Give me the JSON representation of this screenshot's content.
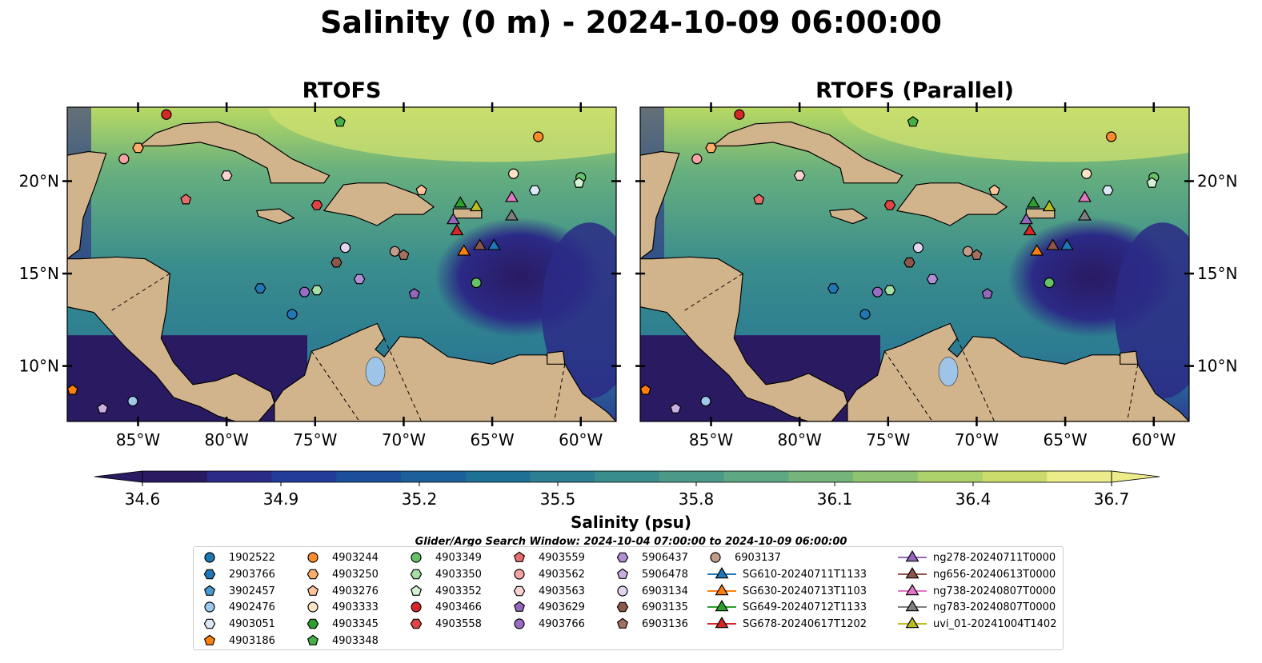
{
  "title": "Salinity (0 m) - 2024-10-09 06:00:00",
  "panels": [
    {
      "title": "RTOFS"
    },
    {
      "title": "RTOFS (Parallel)"
    }
  ],
  "axes": {
    "lon_ticks": [
      "85°W",
      "80°W",
      "75°W",
      "70°W",
      "65°W",
      "60°W"
    ],
    "lat_ticks": [
      "20°N",
      "15°N",
      "10°N"
    ],
    "lon_values": [
      -85,
      -80,
      -75,
      -70,
      -65,
      -60
    ],
    "lat_values": [
      20,
      15,
      10
    ],
    "lon_range": [
      -89,
      -58
    ],
    "lat_range": [
      7,
      24
    ]
  },
  "colorbar": {
    "label": "Salinity (psu)",
    "ticks": [
      "34.6",
      "34.9",
      "35.2",
      "35.5",
      "35.8",
      "36.1",
      "36.4",
      "36.7"
    ],
    "range": [
      34.6,
      36.7
    ],
    "extend": "both",
    "colormap": [
      "#2a1a62",
      "#2b2a86",
      "#233c99",
      "#1c4f9b",
      "#1b6098",
      "#1f7095",
      "#2b7f91",
      "#3a8d8d",
      "#4b9a88",
      "#5ea783",
      "#75b57c",
      "#8fc372",
      "#acd06a",
      "#cbdc6c",
      "#ecec8a"
    ]
  },
  "search_window": "Glider/Argo Search Window: 2024-10-04 07:00:00 to 2024-10-09 06:00:00",
  "colors": {
    "land": "#d2b48c",
    "lakes": "#9ec4e8",
    "rivers": "#a9c4e3",
    "water_high": "#b9d962",
    "water_mid": "#3f8f8b",
    "water_low": "#2b1a66"
  },
  "legend": {
    "columns": [
      [
        {
          "label": "1902522",
          "shape": "circle",
          "color": "#1f77b4"
        },
        {
          "label": "2903766",
          "shape": "hexagon",
          "color": "#1f77b4"
        },
        {
          "label": "3902457",
          "shape": "pentagon",
          "color": "#4a9ad0"
        },
        {
          "label": "4902476",
          "shape": "circle",
          "color": "#9fc8ea"
        },
        {
          "label": "4903051",
          "shape": "hexagon",
          "color": "#dbe9f6"
        },
        {
          "label": "4903186",
          "shape": "pentagon",
          "color": "#ff7f0e"
        }
      ],
      [
        {
          "label": "4903244",
          "shape": "circle",
          "color": "#ff8c2a"
        },
        {
          "label": "4903250",
          "shape": "hexagon",
          "color": "#ffad6b"
        },
        {
          "label": "4903276",
          "shape": "pentagon",
          "color": "#ffc59a"
        },
        {
          "label": "4903333",
          "shape": "circle",
          "color": "#ffe3c6"
        },
        {
          "label": "4903345",
          "shape": "hexagon",
          "color": "#2ca02c"
        },
        {
          "label": "4903348",
          "shape": "pentagon",
          "color": "#45b045"
        }
      ],
      [
        {
          "label": "4903349",
          "shape": "circle",
          "color": "#66c266"
        },
        {
          "label": "4903350",
          "shape": "hexagon",
          "color": "#a6dea6"
        },
        {
          "label": "4903352",
          "shape": "pentagon",
          "color": "#d5f2d5"
        },
        {
          "label": "4903466",
          "shape": "circle",
          "color": "#d62728"
        },
        {
          "label": "4903558",
          "shape": "hexagon",
          "color": "#e04545"
        }
      ],
      [
        {
          "label": "4903559",
          "shape": "pentagon",
          "color": "#ea6d6d"
        },
        {
          "label": "4903562",
          "shape": "circle",
          "color": "#f5a3a3"
        },
        {
          "label": "4903563",
          "shape": "hexagon",
          "color": "#fbd1d1"
        },
        {
          "label": "4903629",
          "shape": "pentagon",
          "color": "#9467bd"
        },
        {
          "label": "4903766",
          "shape": "circle",
          "color": "#9a6dc4"
        }
      ],
      [
        {
          "label": "5906437",
          "shape": "hexagon",
          "color": "#b18fd4"
        },
        {
          "label": "5906478",
          "shape": "pentagon",
          "color": "#c9b0e3"
        },
        {
          "label": "6903134",
          "shape": "circle",
          "color": "#e3d4f2"
        },
        {
          "label": "6903135",
          "shape": "hexagon",
          "color": "#8c564b"
        },
        {
          "label": "6903136",
          "shape": "pentagon",
          "color": "#a3705f"
        }
      ],
      [
        {
          "label": "6903137",
          "shape": "circle",
          "color": "#c39b8b"
        },
        {
          "label": "SG610-20240711T1133",
          "shape": "triangle",
          "color": "#1f77b4"
        },
        {
          "label": "SG630-20240713T1103",
          "shape": "triangle",
          "color": "#ff7f0e"
        },
        {
          "label": "SG649-20240712T1133",
          "shape": "triangle",
          "color": "#2ca02c"
        },
        {
          "label": "SG678-20240617T1202",
          "shape": "triangle",
          "color": "#d62728"
        }
      ],
      [
        {
          "label": "ng278-20240711T0000",
          "shape": "triangle",
          "color": "#9467bd"
        },
        {
          "label": "ng656-20240613T0000",
          "shape": "triangle",
          "color": "#8c564b"
        },
        {
          "label": "ng738-20240807T0000",
          "shape": "triangle",
          "color": "#e377c2"
        },
        {
          "label": "ng783-20240807T0000",
          "shape": "triangle",
          "color": "#7f7f7f"
        },
        {
          "label": "uvi_01-20241004T1402",
          "shape": "triangle",
          "color": "#bcbd22"
        }
      ]
    ]
  },
  "markers": [
    {
      "name": "4903466",
      "shape": "circle",
      "color": "#d62728",
      "lon": -83.4,
      "lat": 23.6
    },
    {
      "name": "4903250",
      "shape": "hexagon",
      "color": "#ffad6b",
      "lon": -85.0,
      "lat": 21.8
    },
    {
      "name": "4903562",
      "shape": "circle",
      "color": "#f5a3a3",
      "lon": -85.8,
      "lat": 21.2
    },
    {
      "name": "4903559",
      "shape": "pentagon",
      "color": "#ea6d6d",
      "lon": -82.3,
      "lat": 19.0
    },
    {
      "name": "4903563",
      "shape": "hexagon",
      "color": "#fbd1d1",
      "lon": -80.0,
      "lat": 20.3
    },
    {
      "name": "4903348",
      "shape": "pentagon",
      "color": "#45b045",
      "lon": -73.6,
      "lat": 23.2
    },
    {
      "name": "4903244",
      "shape": "circle",
      "color": "#ff8c2a",
      "lon": -62.4,
      "lat": 22.4
    },
    {
      "name": "4903333",
      "shape": "circle",
      "color": "#ffe3c6",
      "lon": -63.8,
      "lat": 20.4
    },
    {
      "name": "4903051",
      "shape": "hexagon",
      "color": "#dbe9f6",
      "lon": -62.6,
      "lat": 19.5
    },
    {
      "name": "4903349",
      "shape": "circle",
      "color": "#66c266",
      "lon": -60.0,
      "lat": 20.2
    },
    {
      "name": "4903352",
      "shape": "pentagon",
      "color": "#d5f2d5",
      "lon": -60.1,
      "lat": 19.9
    },
    {
      "name": "4903276",
      "shape": "pentagon",
      "color": "#ffc59a",
      "lon": -69.0,
      "lat": 19.5
    },
    {
      "name": "4903558",
      "shape": "hexagon",
      "color": "#e04545",
      "lon": -74.9,
      "lat": 18.7
    },
    {
      "name": "6903134",
      "shape": "circle",
      "color": "#e3d4f2",
      "lon": -73.3,
      "lat": 16.4
    },
    {
      "name": "6903135",
      "shape": "hexagon",
      "color": "#8c564b",
      "lon": -73.8,
      "lat": 15.6
    },
    {
      "name": "6903137",
      "shape": "circle",
      "color": "#c39b8b",
      "lon": -70.5,
      "lat": 16.2
    },
    {
      "name": "6903136",
      "shape": "pentagon",
      "color": "#a3705f",
      "lon": -70.0,
      "lat": 16.0
    },
    {
      "name": "5906437",
      "shape": "hexagon",
      "color": "#b18fd4",
      "lon": -72.5,
      "lat": 14.7
    },
    {
      "name": "4903350",
      "shape": "hexagon",
      "color": "#a6dea6",
      "lon": -74.9,
      "lat": 14.1
    },
    {
      "name": "4903766",
      "shape": "circle",
      "color": "#9a6dc4",
      "lon": -75.6,
      "lat": 14.0
    },
    {
      "name": "4903629",
      "shape": "pentagon",
      "color": "#9467bd",
      "lon": -69.4,
      "lat": 13.9
    },
    {
      "name": "2903766",
      "shape": "hexagon",
      "color": "#1f77b4",
      "lon": -78.1,
      "lat": 14.2
    },
    {
      "name": "1902522",
      "shape": "circle",
      "color": "#1f77b4",
      "lon": -76.3,
      "lat": 12.8
    },
    {
      "name": "4903349",
      "shape": "circle",
      "color": "#66c266",
      "lon": -65.9,
      "lat": 14.5
    },
    {
      "name": "4903186",
      "shape": "pentagon",
      "color": "#ff7f0e",
      "lon": -88.7,
      "lat": 8.7
    },
    {
      "name": "4902476",
      "shape": "circle",
      "color": "#9fc8ea",
      "lon": -85.3,
      "lat": 8.1
    },
    {
      "name": "5906478",
      "shape": "pentagon",
      "color": "#c9b0e3",
      "lon": -87.0,
      "lat": 7.7
    },
    {
      "name": "SG649-20240712T1133",
      "shape": "triangle",
      "color": "#2ca02c",
      "lon": -66.8,
      "lat": 18.8
    },
    {
      "name": "uvi_01-20241004T1402",
      "shape": "triangle",
      "color": "#bcbd22",
      "lon": -65.9,
      "lat": 18.6
    },
    {
      "name": "ng738-20240807T0000",
      "shape": "triangle",
      "color": "#e377c2",
      "lon": -63.9,
      "lat": 19.1
    },
    {
      "name": "ng278-20240711T0000",
      "shape": "triangle",
      "color": "#9467bd",
      "lon": -67.2,
      "lat": 17.9
    },
    {
      "name": "ng783-20240807T0000",
      "shape": "triangle",
      "color": "#7f7f7f",
      "lon": -63.9,
      "lat": 18.1
    },
    {
      "name": "SG678-20240617T1202",
      "shape": "triangle",
      "color": "#d62728",
      "lon": -67.0,
      "lat": 17.3
    },
    {
      "name": "SG630-20240713T1103",
      "shape": "triangle",
      "color": "#ff7f0e",
      "lon": -66.6,
      "lat": 16.2
    },
    {
      "name": "ng656-20240613T0000",
      "shape": "triangle",
      "color": "#8c564b",
      "lon": -65.7,
      "lat": 16.5
    },
    {
      "name": "SG610-20240711T1133",
      "shape": "triangle",
      "color": "#1f77b4",
      "lon": -64.9,
      "lat": 16.5
    }
  ]
}
